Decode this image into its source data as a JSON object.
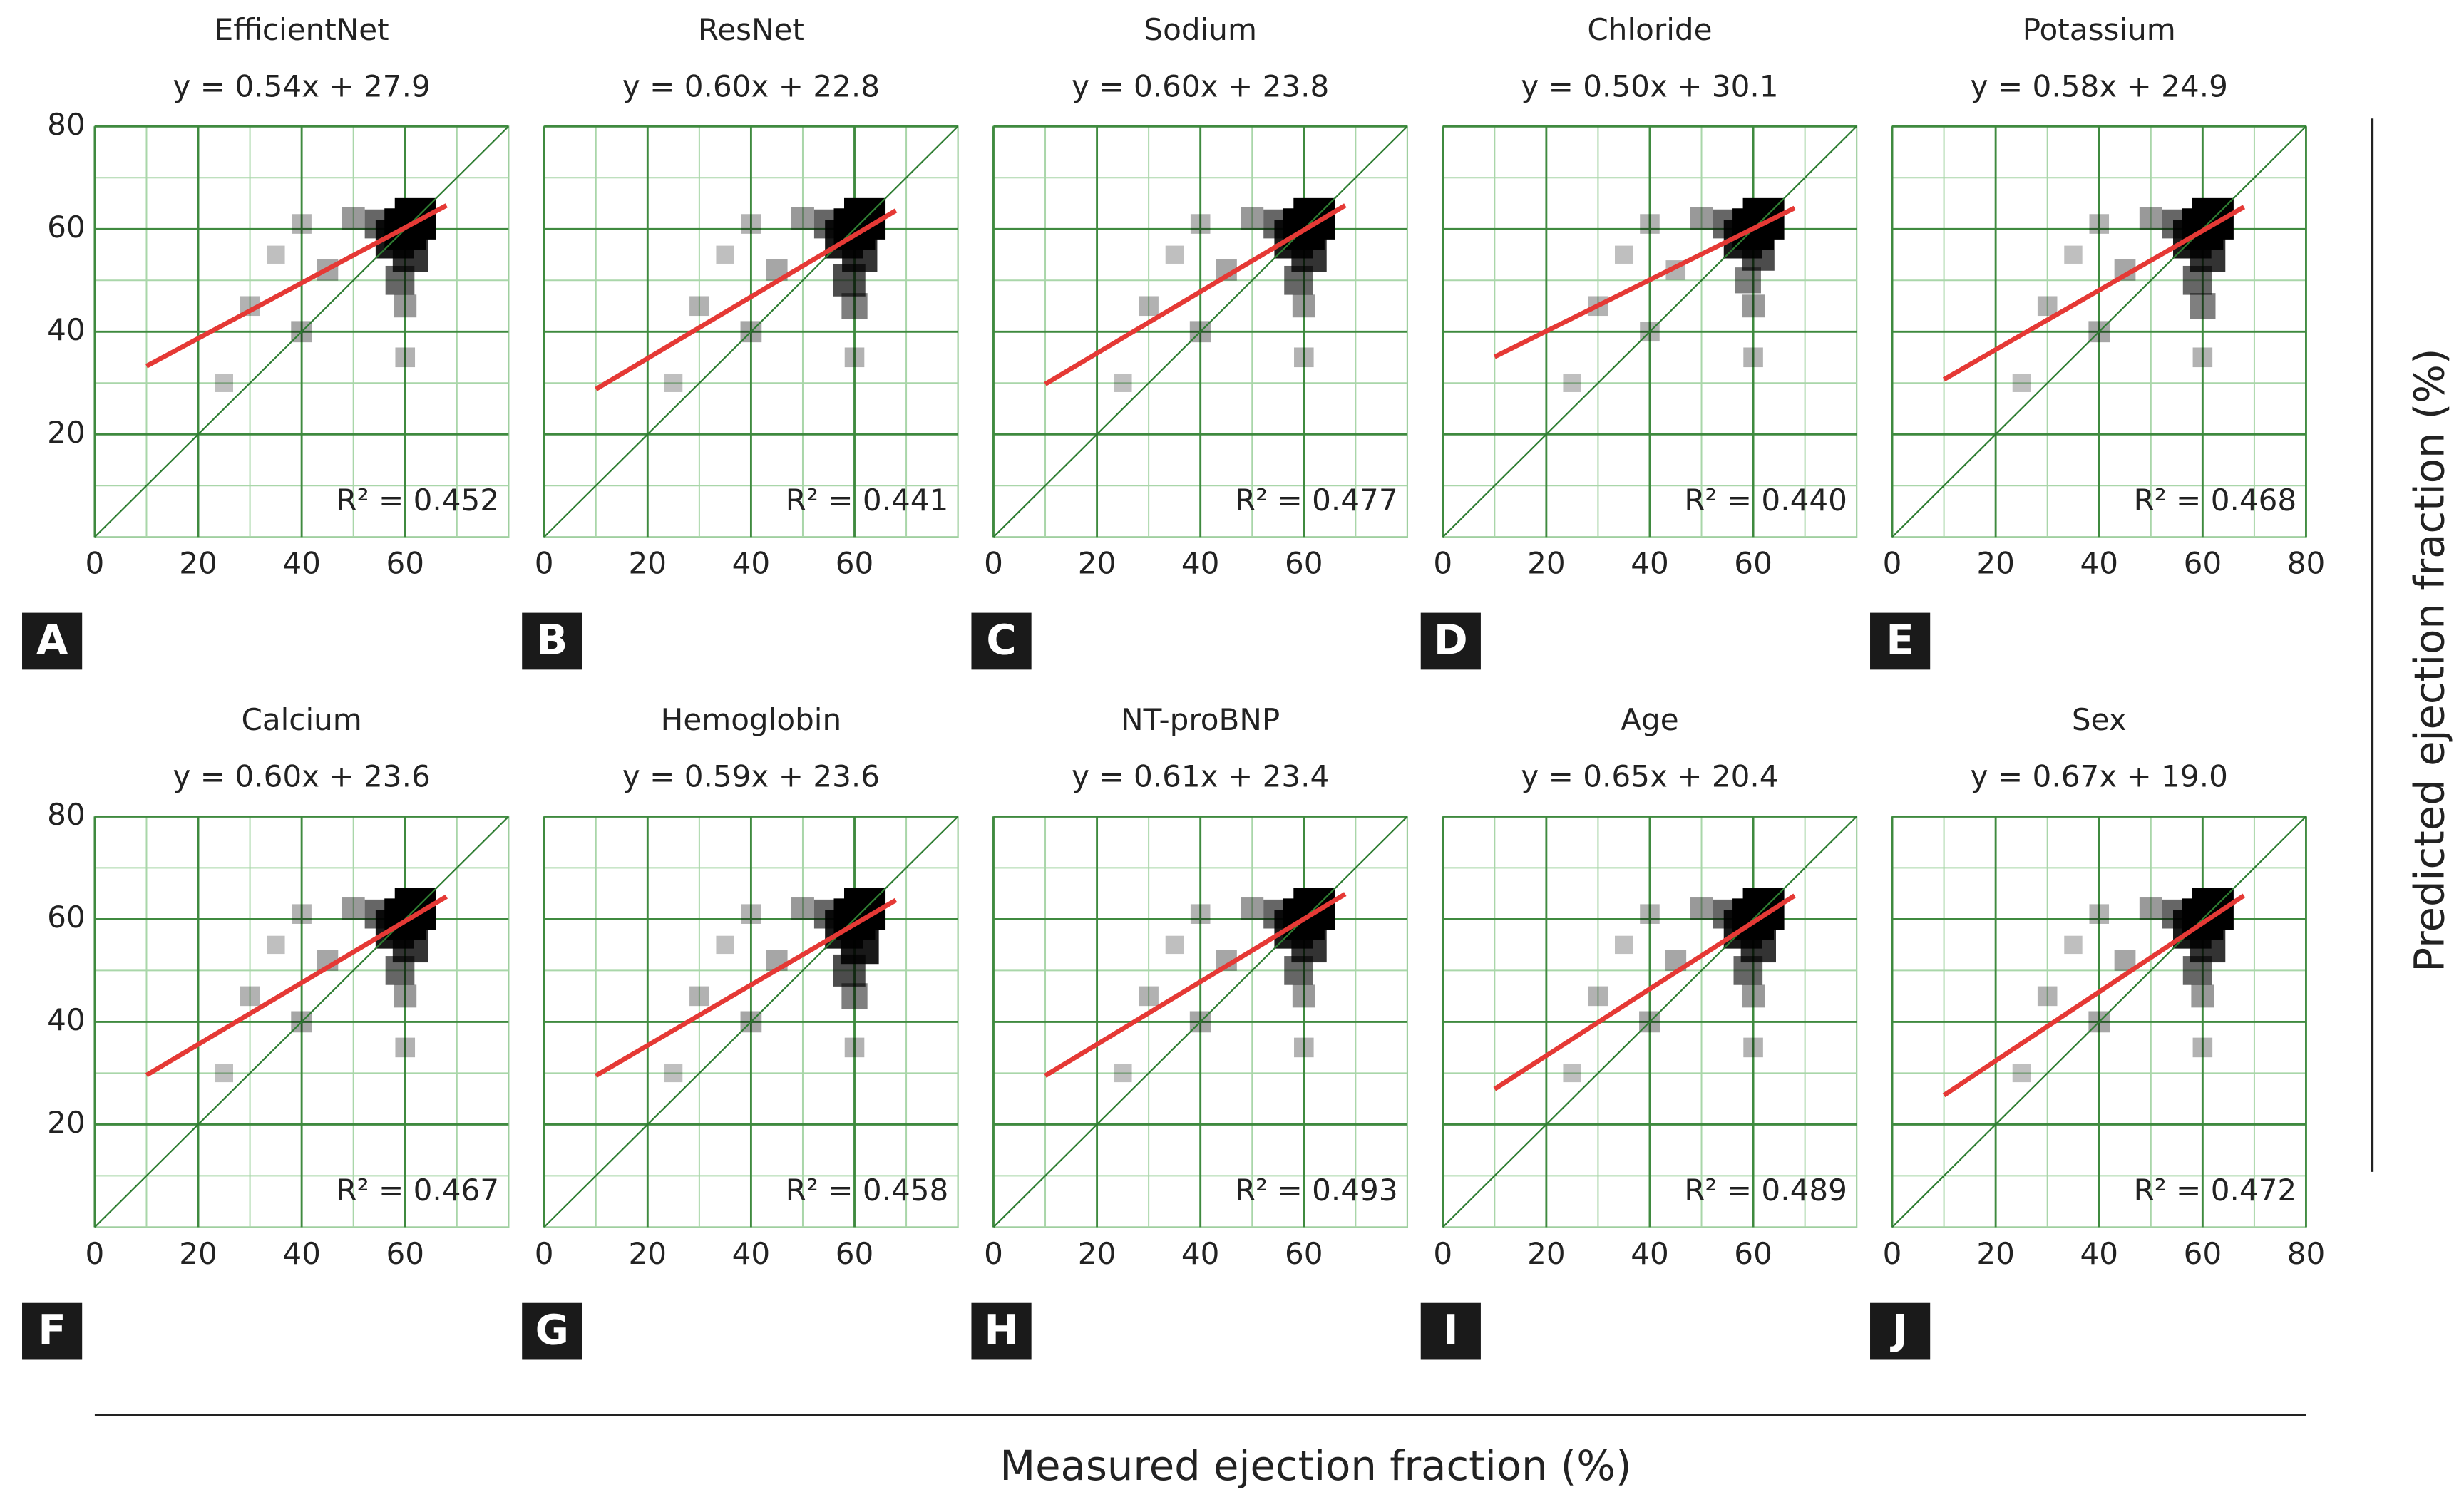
{
  "x_label": "Measured ejection fraction (%)",
  "y_label": "Predicted ejection fraction (%)",
  "chart_data": [
    {
      "type": "scatter",
      "panel": "A",
      "title": "EfficientNet",
      "subtitle": "y = 0.54x + 27.9",
      "r2_label": "R² = 0.452",
      "xlim": [
        0,
        80
      ],
      "ylim": [
        0,
        80
      ],
      "xticks": [
        0,
        20,
        40,
        60
      ],
      "yticks": [
        20,
        40,
        60,
        80
      ],
      "ytick_labels": true,
      "minor_ticks": [
        10,
        30,
        50,
        70
      ],
      "grid": true,
      "points": {
        "color": "#000000",
        "x": [
          60,
          62,
          58,
          61,
          59,
          60,
          55,
          50,
          40,
          30,
          40,
          25,
          45,
          35,
          60
        ],
        "values": [
          60,
          62,
          58,
          55,
          50,
          45,
          61,
          62,
          61,
          45,
          40,
          30,
          52,
          55,
          35
        ],
        "weights": [
          1,
          1,
          0.9,
          0.8,
          0.6,
          0.4,
          0.6,
          0.4,
          0.3,
          0.3,
          0.35,
          0.25,
          0.35,
          0.25,
          0.3
        ]
      },
      "series": [
        {
          "color": "#2e7d32",
          "x": [
            0,
            80
          ],
          "values": [
            0,
            80
          ]
        },
        {
          "color": "#e53935",
          "x": [
            10,
            68
          ],
          "values": [
            33.3,
            64.6
          ]
        }
      ]
    },
    {
      "type": "scatter",
      "panel": "B",
      "title": "ResNet",
      "subtitle": "y = 0.60x + 22.8",
      "r2_label": "R² = 0.441",
      "xlim": [
        0,
        80
      ],
      "ylim": [
        0,
        80
      ],
      "xticks": [
        0,
        20,
        40,
        60
      ],
      "yticks": [
        20,
        40,
        60,
        80
      ],
      "ytick_labels": false,
      "minor_ticks": [
        10,
        30,
        50,
        70
      ],
      "grid": true,
      "points": {
        "color": "#000000",
        "x": [
          60,
          62,
          58,
          61,
          59,
          60,
          55,
          50,
          40,
          30,
          40,
          25,
          45,
          35,
          60
        ],
        "values": [
          60,
          62,
          58,
          55,
          50,
          45,
          61,
          62,
          61,
          45,
          40,
          30,
          52,
          55,
          35
        ],
        "weights": [
          1,
          1,
          0.9,
          0.8,
          0.7,
          0.5,
          0.6,
          0.4,
          0.3,
          0.3,
          0.35,
          0.25,
          0.35,
          0.25,
          0.3
        ]
      },
      "series": [
        {
          "color": "#2e7d32",
          "x": [
            0,
            80
          ],
          "values": [
            0,
            80
          ]
        },
        {
          "color": "#e53935",
          "x": [
            10,
            68
          ],
          "values": [
            28.8,
            63.6
          ]
        }
      ]
    },
    {
      "type": "scatter",
      "panel": "C",
      "title": "Sodium",
      "subtitle": "y = 0.60x + 23.8",
      "r2_label": "R² = 0.477",
      "xlim": [
        0,
        80
      ],
      "ylim": [
        0,
        80
      ],
      "xticks": [
        0,
        20,
        40,
        60
      ],
      "yticks": [
        20,
        40,
        60,
        80
      ],
      "ytick_labels": false,
      "minor_ticks": [
        10,
        30,
        50,
        70
      ],
      "grid": true,
      "points": {
        "color": "#000000",
        "x": [
          60,
          62,
          58,
          61,
          59,
          60,
          55,
          50,
          40,
          30,
          40,
          25,
          45,
          35,
          60
        ],
        "values": [
          60,
          62,
          58,
          55,
          50,
          45,
          61,
          62,
          61,
          45,
          40,
          30,
          52,
          55,
          35
        ],
        "weights": [
          1,
          1,
          0.9,
          0.8,
          0.6,
          0.4,
          0.6,
          0.4,
          0.3,
          0.3,
          0.35,
          0.25,
          0.35,
          0.25,
          0.3
        ]
      },
      "series": [
        {
          "color": "#2e7d32",
          "x": [
            0,
            80
          ],
          "values": [
            0,
            80
          ]
        },
        {
          "color": "#e53935",
          "x": [
            10,
            68
          ],
          "values": [
            29.8,
            64.6
          ]
        }
      ]
    },
    {
      "type": "scatter",
      "panel": "D",
      "title": "Chloride",
      "subtitle": "y = 0.50x + 30.1",
      "r2_label": "R² = 0.440",
      "xlim": [
        0,
        80
      ],
      "ylim": [
        0,
        80
      ],
      "xticks": [
        0,
        20,
        40,
        60
      ],
      "yticks": [
        20,
        40,
        60,
        80
      ],
      "ytick_labels": false,
      "minor_ticks": [
        10,
        30,
        50,
        70
      ],
      "grid": true,
      "points": {
        "color": "#000000",
        "x": [
          60,
          62,
          58,
          61,
          59,
          60,
          55,
          50,
          40,
          30,
          40,
          25,
          45,
          35,
          60
        ],
        "values": [
          60,
          62,
          58,
          55,
          50,
          45,
          61,
          62,
          61,
          45,
          40,
          30,
          52,
          55,
          35
        ],
        "weights": [
          1,
          1,
          0.9,
          0.7,
          0.5,
          0.4,
          0.6,
          0.4,
          0.3,
          0.3,
          0.3,
          0.25,
          0.3,
          0.25,
          0.3
        ]
      },
      "series": [
        {
          "color": "#2e7d32",
          "x": [
            0,
            80
          ],
          "values": [
            0,
            80
          ]
        },
        {
          "color": "#e53935",
          "x": [
            10,
            68
          ],
          "values": [
            35.1,
            64.1
          ]
        }
      ]
    },
    {
      "type": "scatter",
      "panel": "E",
      "title": "Potassium",
      "subtitle": "y = 0.58x + 24.9",
      "r2_label": "R² = 0.468",
      "xlim": [
        0,
        80
      ],
      "ylim": [
        0,
        80
      ],
      "xticks": [
        0,
        20,
        40,
        60,
        80
      ],
      "yticks": [
        20,
        40,
        60,
        80
      ],
      "ytick_labels": false,
      "minor_ticks": [
        10,
        30,
        50,
        70
      ],
      "grid": true,
      "points": {
        "color": "#000000",
        "x": [
          60,
          62,
          58,
          61,
          59,
          60,
          55,
          50,
          40,
          30,
          40,
          25,
          45,
          35,
          60
        ],
        "values": [
          60,
          62,
          58,
          55,
          50,
          45,
          61,
          62,
          61,
          45,
          40,
          30,
          52,
          55,
          35
        ],
        "weights": [
          1,
          1,
          0.9,
          0.8,
          0.6,
          0.5,
          0.6,
          0.4,
          0.3,
          0.3,
          0.35,
          0.25,
          0.35,
          0.25,
          0.3
        ]
      },
      "series": [
        {
          "color": "#2e7d32",
          "x": [
            0,
            80
          ],
          "values": [
            0,
            80
          ]
        },
        {
          "color": "#e53935",
          "x": [
            10,
            68
          ],
          "values": [
            30.7,
            64.3
          ]
        }
      ]
    },
    {
      "type": "scatter",
      "panel": "F",
      "title": "Calcium",
      "subtitle": "y = 0.60x + 23.6",
      "r2_label": "R² = 0.467",
      "xlim": [
        0,
        80
      ],
      "ylim": [
        0,
        80
      ],
      "xticks": [
        0,
        20,
        40,
        60
      ],
      "yticks": [
        20,
        40,
        60,
        80
      ],
      "ytick_labels": true,
      "minor_ticks": [
        10,
        30,
        50,
        70
      ],
      "grid": true,
      "points": {
        "color": "#000000",
        "x": [
          60,
          62,
          58,
          61,
          59,
          60,
          55,
          50,
          40,
          30,
          40,
          25,
          45,
          35,
          60
        ],
        "values": [
          60,
          62,
          58,
          55,
          50,
          45,
          61,
          62,
          61,
          45,
          40,
          30,
          52,
          55,
          35
        ],
        "weights": [
          1,
          1,
          0.9,
          0.8,
          0.6,
          0.4,
          0.6,
          0.4,
          0.3,
          0.3,
          0.35,
          0.25,
          0.35,
          0.25,
          0.3
        ]
      },
      "series": [
        {
          "color": "#2e7d32",
          "x": [
            0,
            80
          ],
          "values": [
            0,
            80
          ]
        },
        {
          "color": "#e53935",
          "x": [
            10,
            68
          ],
          "values": [
            29.6,
            64.4
          ]
        }
      ]
    },
    {
      "type": "scatter",
      "panel": "G",
      "title": "Hemoglobin",
      "subtitle": "y = 0.59x + 23.6",
      "r2_label": "R² = 0.458",
      "xlim": [
        0,
        80
      ],
      "ylim": [
        0,
        80
      ],
      "xticks": [
        0,
        20,
        40,
        60
      ],
      "yticks": [
        20,
        40,
        60,
        80
      ],
      "ytick_labels": false,
      "minor_ticks": [
        10,
        30,
        50,
        70
      ],
      "grid": true,
      "points": {
        "color": "#000000",
        "x": [
          60,
          62,
          58,
          61,
          59,
          60,
          55,
          50,
          40,
          30,
          40,
          25,
          45,
          35,
          60
        ],
        "values": [
          60,
          62,
          58,
          55,
          50,
          45,
          61,
          62,
          61,
          45,
          40,
          30,
          52,
          55,
          35
        ],
        "weights": [
          1,
          1,
          0.9,
          0.9,
          0.7,
          0.5,
          0.6,
          0.4,
          0.3,
          0.3,
          0.35,
          0.25,
          0.35,
          0.25,
          0.3
        ]
      },
      "series": [
        {
          "color": "#2e7d32",
          "x": [
            0,
            80
          ],
          "values": [
            0,
            80
          ]
        },
        {
          "color": "#e53935",
          "x": [
            10,
            68
          ],
          "values": [
            29.5,
            63.7
          ]
        }
      ]
    },
    {
      "type": "scatter",
      "panel": "H",
      "title": "NT-proBNP",
      "subtitle": "y = 0.61x + 23.4",
      "r2_label": "R² = 0.493",
      "xlim": [
        0,
        80
      ],
      "ylim": [
        0,
        80
      ],
      "xticks": [
        0,
        20,
        40,
        60
      ],
      "yticks": [
        20,
        40,
        60,
        80
      ],
      "ytick_labels": false,
      "minor_ticks": [
        10,
        30,
        50,
        70
      ],
      "grid": true,
      "points": {
        "color": "#000000",
        "x": [
          60,
          62,
          58,
          61,
          59,
          60,
          55,
          50,
          40,
          30,
          40,
          25,
          45,
          35,
          60
        ],
        "values": [
          60,
          62,
          58,
          55,
          50,
          45,
          61,
          62,
          61,
          45,
          40,
          30,
          52,
          55,
          35
        ],
        "weights": [
          1,
          1,
          0.9,
          0.8,
          0.6,
          0.4,
          0.6,
          0.4,
          0.3,
          0.3,
          0.35,
          0.25,
          0.35,
          0.25,
          0.3
        ]
      },
      "series": [
        {
          "color": "#2e7d32",
          "x": [
            0,
            80
          ],
          "values": [
            0,
            80
          ]
        },
        {
          "color": "#e53935",
          "x": [
            10,
            68
          ],
          "values": [
            29.5,
            64.9
          ]
        }
      ]
    },
    {
      "type": "scatter",
      "panel": "I",
      "title": "Age",
      "subtitle": "y = 0.65x + 20.4",
      "r2_label": "R² = 0.489",
      "xlim": [
        0,
        80
      ],
      "ylim": [
        0,
        80
      ],
      "xticks": [
        0,
        20,
        40,
        60
      ],
      "yticks": [
        20,
        40,
        60,
        80
      ],
      "ytick_labels": false,
      "minor_ticks": [
        10,
        30,
        50,
        70
      ],
      "grid": true,
      "points": {
        "color": "#000000",
        "x": [
          60,
          62,
          58,
          61,
          59,
          60,
          55,
          50,
          40,
          30,
          40,
          25,
          45,
          35,
          60
        ],
        "values": [
          60,
          62,
          58,
          55,
          50,
          45,
          61,
          62,
          61,
          45,
          40,
          30,
          52,
          55,
          35
        ],
        "weights": [
          1,
          1,
          0.9,
          0.8,
          0.6,
          0.4,
          0.6,
          0.4,
          0.3,
          0.3,
          0.35,
          0.25,
          0.35,
          0.25,
          0.3
        ]
      },
      "series": [
        {
          "color": "#2e7d32",
          "x": [
            0,
            80
          ],
          "values": [
            0,
            80
          ]
        },
        {
          "color": "#e53935",
          "x": [
            10,
            68
          ],
          "values": [
            26.9,
            64.6
          ]
        }
      ]
    },
    {
      "type": "scatter",
      "panel": "J",
      "title": "Sex",
      "subtitle": "y = 0.67x + 19.0",
      "r2_label": "R² = 0.472",
      "xlim": [
        0,
        80
      ],
      "ylim": [
        0,
        80
      ],
      "xticks": [
        0,
        20,
        40,
        60,
        80
      ],
      "yticks": [
        20,
        40,
        60,
        80
      ],
      "ytick_labels": false,
      "minor_ticks": [
        10,
        30,
        50,
        70
      ],
      "grid": true,
      "points": {
        "color": "#000000",
        "x": [
          60,
          62,
          58,
          61,
          59,
          60,
          55,
          50,
          40,
          30,
          40,
          25,
          45,
          35,
          60
        ],
        "values": [
          60,
          62,
          58,
          55,
          50,
          45,
          61,
          62,
          61,
          45,
          40,
          30,
          52,
          55,
          35
        ],
        "weights": [
          1,
          1,
          0.9,
          0.8,
          0.6,
          0.4,
          0.6,
          0.4,
          0.3,
          0.3,
          0.35,
          0.25,
          0.35,
          0.25,
          0.3
        ]
      },
      "series": [
        {
          "color": "#2e7d32",
          "x": [
            0,
            80
          ],
          "values": [
            0,
            80
          ]
        },
        {
          "color": "#e53935",
          "x": [
            10,
            68
          ],
          "values": [
            25.7,
            64.6
          ]
        }
      ]
    }
  ]
}
